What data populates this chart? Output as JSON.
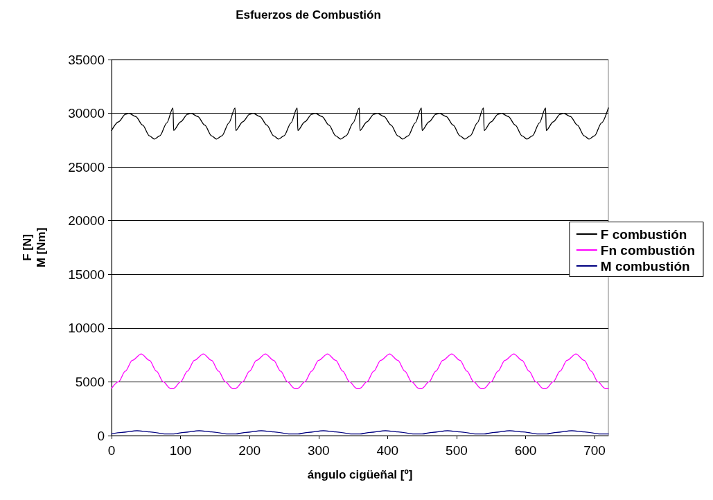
{
  "chart_data": {
    "type": "line",
    "title": "Esfuerzos de Combustión",
    "xlabel": "ángulo cigüeñal [º]",
    "ylabel": "F [N]\nM [Nm]",
    "xlim": [
      0,
      720
    ],
    "xticks": [
      0,
      100,
      200,
      300,
      400,
      500,
      600,
      700
    ],
    "ylim": [
      0,
      35000
    ],
    "yticks": [
      0,
      5000,
      10000,
      15000,
      20000,
      25000,
      30000,
      35000
    ],
    "grid": "y",
    "legend": "right",
    "marker": "none",
    "line_style": "solid",
    "series": [
      {
        "name": "F combustión",
        "color": "#000000",
        "x": [
          0,
          10,
          20,
          25,
          35,
          45,
          55,
          62,
          70,
          80,
          89,
          90,
          100,
          110,
          115,
          125,
          135,
          145,
          152,
          160,
          170,
          179,
          180,
          190,
          200,
          205,
          215,
          225,
          235,
          242,
          250,
          260,
          269,
          270,
          280,
          290,
          295,
          305,
          315,
          325,
          332,
          340,
          350,
          359,
          360,
          370,
          380,
          385,
          395,
          405,
          415,
          422,
          430,
          440,
          449,
          450,
          460,
          470,
          475,
          485,
          495,
          505,
          512,
          520,
          530,
          539,
          540,
          550,
          560,
          565,
          575,
          585,
          595,
          602,
          610,
          620,
          629,
          630,
          640,
          650,
          655,
          665,
          675,
          685,
          692,
          700,
          710,
          720
        ],
        "values": [
          28400,
          29200,
          29900,
          30000,
          29700,
          28900,
          27900,
          27600,
          27900,
          29100,
          30500,
          28400,
          29200,
          29900,
          30000,
          29700,
          28900,
          27900,
          27600,
          27900,
          29100,
          30500,
          28400,
          29200,
          29900,
          30000,
          29700,
          28900,
          27900,
          27600,
          27900,
          29100,
          30500,
          28400,
          29200,
          29900,
          30000,
          29700,
          28900,
          27900,
          27600,
          27900,
          29100,
          30500,
          28400,
          29200,
          29900,
          30000,
          29700,
          28900,
          27900,
          27600,
          27900,
          29100,
          30500,
          28400,
          29200,
          29900,
          30000,
          29700,
          28900,
          27900,
          27600,
          27900,
          29100,
          30500,
          28400,
          29200,
          29900,
          30000,
          29700,
          28900,
          27900,
          27600,
          27900,
          29100,
          30500,
          28400,
          29200,
          29900,
          30000,
          29700,
          28900,
          27900,
          27600,
          27900,
          29100,
          30500
        ]
      },
      {
        "name": "Fn combustión",
        "color": "#ff00ff",
        "x": [
          0,
          10,
          20,
          30,
          43,
          55,
          65,
          75,
          85,
          90,
          100,
          110,
          120,
          133,
          145,
          155,
          165,
          175,
          180,
          190,
          200,
          210,
          223,
          235,
          245,
          255,
          265,
          270,
          280,
          290,
          300,
          313,
          325,
          335,
          345,
          355,
          360,
          370,
          380,
          390,
          403,
          415,
          425,
          435,
          445,
          450,
          460,
          470,
          480,
          493,
          505,
          515,
          525,
          535,
          540,
          550,
          560,
          570,
          583,
          595,
          605,
          615,
          625,
          630,
          640,
          650,
          660,
          673,
          685,
          695,
          705,
          715,
          720
        ],
        "values": [
          4400,
          5000,
          6000,
          7000,
          7600,
          7000,
          6000,
          5000,
          4400,
          4400,
          5000,
          6000,
          7000,
          7600,
          7000,
          6000,
          5000,
          4400,
          4400,
          5000,
          6000,
          7000,
          7600,
          7000,
          6000,
          5000,
          4400,
          4400,
          5000,
          6000,
          7000,
          7600,
          7000,
          6000,
          5000,
          4400,
          4400,
          5000,
          6000,
          7000,
          7600,
          7000,
          6000,
          5000,
          4400,
          4400,
          5000,
          6000,
          7000,
          7600,
          7000,
          6000,
          5000,
          4400,
          4400,
          5000,
          6000,
          7000,
          7600,
          7000,
          6000,
          5000,
          4400,
          4400,
          5000,
          6000,
          7000,
          7600,
          7000,
          6000,
          5000,
          4400,
          4400
        ]
      },
      {
        "name": "M combustión",
        "color": "#000080",
        "x": [
          0,
          15,
          37,
          55,
          79,
          90,
          105,
          127,
          145,
          169,
          180,
          195,
          217,
          235,
          259,
          270,
          285,
          307,
          325,
          349,
          360,
          375,
          397,
          415,
          439,
          450,
          465,
          487,
          505,
          529,
          540,
          555,
          577,
          595,
          619,
          630,
          645,
          667,
          685,
          709,
          720
        ],
        "values": [
          150,
          300,
          450,
          350,
          150,
          150,
          300,
          450,
          350,
          150,
          150,
          300,
          450,
          350,
          150,
          150,
          300,
          450,
          350,
          150,
          150,
          300,
          450,
          350,
          150,
          150,
          300,
          450,
          350,
          150,
          150,
          300,
          450,
          350,
          150,
          150,
          300,
          450,
          350,
          150,
          150
        ]
      }
    ]
  }
}
